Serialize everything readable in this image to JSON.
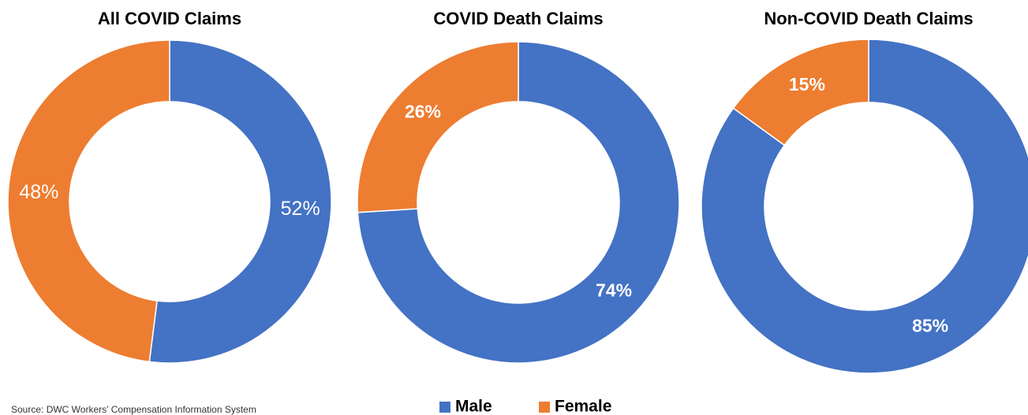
{
  "chart_data": [
    {
      "type": "donut",
      "title": "All COVID Claims",
      "categories": [
        "Male",
        "Female"
      ],
      "values": [
        52,
        48
      ],
      "value_labels": [
        "52%",
        "48%"
      ],
      "colors": [
        "#4472c4",
        "#ed7d31"
      ]
    },
    {
      "type": "donut",
      "title": "COVID Death Claims",
      "categories": [
        "Male",
        "Female"
      ],
      "values": [
        74,
        26
      ],
      "value_labels": [
        "74%",
        "26%"
      ],
      "colors": [
        "#4472c4",
        "#ed7d31"
      ]
    },
    {
      "type": "donut",
      "title": "Non-COVID Death Claims",
      "categories": [
        "Male",
        "Female"
      ],
      "values": [
        85,
        15
      ],
      "value_labels": [
        "85%",
        "15%"
      ],
      "colors": [
        "#4472c4",
        "#ed7d31"
      ]
    }
  ],
  "source": "Source:  DWC Workers' Compensation Information System"
}
